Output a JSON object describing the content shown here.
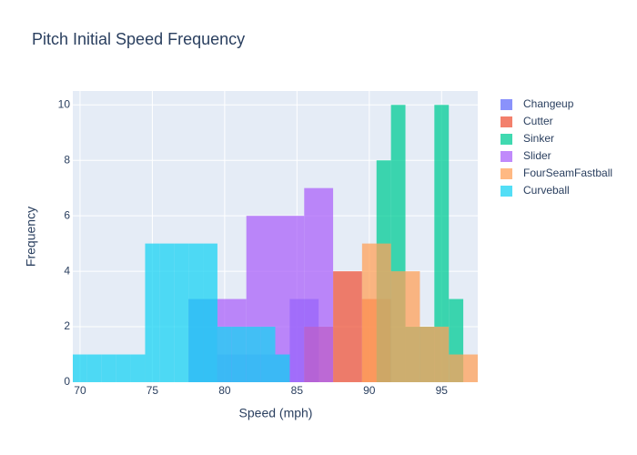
{
  "chart_data": {
    "type": "histogram",
    "title": "Pitch Initial Speed Frequency",
    "x_label": "Speed (mph)",
    "y_label": "Frequency",
    "xlim": [
      69.5,
      97.5
    ],
    "ylim": [
      0,
      10.5
    ],
    "xticks": [
      70,
      75,
      80,
      85,
      90,
      95
    ],
    "yticks": [
      0,
      2,
      4,
      6,
      8,
      10
    ],
    "grid": true,
    "legend": "right",
    "series": [
      {
        "name": "Changeup",
        "color": "#636efa",
        "bins": [
          77.5,
          78.5,
          79.5,
          80.5,
          81.5,
          82.5,
          83.5,
          84.5,
          85.5,
          86.5
        ],
        "values": [
          3,
          3,
          1,
          1,
          1,
          1,
          1,
          3,
          3
        ]
      },
      {
        "name": "Cutter",
        "color": "#ef553b",
        "bins": [
          85.5,
          87.5,
          89.5,
          91.5
        ],
        "values": [
          2,
          4,
          3
        ]
      },
      {
        "name": "Sinker",
        "color": "#00cc96",
        "bins": [
          90.5,
          91.5,
          92.5,
          93.5,
          94.5,
          95.5,
          96.5
        ],
        "values": [
          8,
          10,
          2,
          2,
          10,
          3
        ]
      },
      {
        "name": "Slider",
        "color": "#ab63fa",
        "bins": [
          79.5,
          81.5,
          83.5,
          85.5,
          87.5
        ],
        "values": [
          3,
          6,
          6,
          7
        ]
      },
      {
        "name": "FourSeamFastball",
        "color": "#ffa15a",
        "bins": [
          89.5,
          91.5,
          93.5,
          95.5,
          97.5
        ],
        "values": [
          5,
          4,
          2,
          1
        ]
      },
      {
        "name": "Curveball",
        "color": "#19d3f3",
        "bins": [
          69.5,
          70.5,
          71.5,
          72.5,
          73.5,
          74.5,
          75.5,
          76.5,
          77.5,
          78.5,
          79.5,
          80.5,
          81.5,
          82.5,
          83.5,
          84.5
        ],
        "values": [
          1,
          1,
          1,
          1,
          1,
          5,
          5,
          5,
          5,
          5,
          2,
          2,
          2,
          2,
          1
        ]
      }
    ]
  }
}
